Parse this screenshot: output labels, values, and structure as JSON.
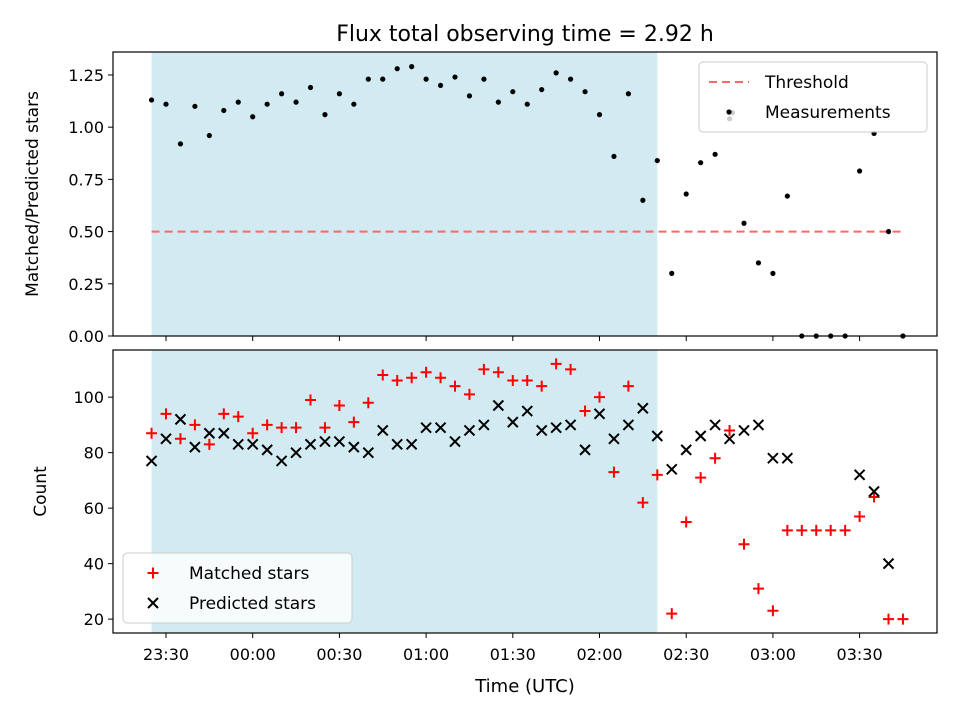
{
  "chart_data": {
    "title": "Flux total observing time = 2.92 h",
    "xlabel": "Time (UTC)",
    "x_tick_labels": [
      "23:30",
      "00:00",
      "00:30",
      "01:00",
      "01:30",
      "02:00",
      "02:30",
      "03:00",
      "03:30"
    ],
    "shaded_interval": {
      "start": "23:25",
      "end": "02:20",
      "color": "#add8e6"
    },
    "panels": [
      {
        "type": "scatter",
        "ylabel": "Matched/Predicted stars",
        "ylim": [
          0,
          1.36
        ],
        "yticks": [
          "0.00",
          "0.25",
          "0.50",
          "0.75",
          "1.00",
          "1.25"
        ],
        "legend_position": "top-right",
        "threshold": {
          "name": "Threshold",
          "value": 0.5,
          "x_start": "23:25",
          "x_end": "03:45",
          "color": "#ff6666"
        },
        "series": [
          {
            "name": "Measurements",
            "color": "#000000",
            "marker": "dot",
            "x": [
              "23:25",
              "23:30",
              "23:35",
              "23:40",
              "23:45",
              "23:50",
              "23:55",
              "00:00",
              "00:05",
              "00:10",
              "00:15",
              "00:20",
              "00:25",
              "00:30",
              "00:35",
              "00:40",
              "00:45",
              "00:50",
              "00:55",
              "01:00",
              "01:05",
              "01:10",
              "01:15",
              "01:20",
              "01:25",
              "01:30",
              "01:35",
              "01:40",
              "01:45",
              "01:50",
              "01:55",
              "02:00",
              "02:05",
              "02:10",
              "02:15",
              "02:20",
              "02:25",
              "02:30",
              "02:35",
              "02:40",
              "02:45",
              "02:46",
              "02:50",
              "02:55",
              "03:00",
              "03:05",
              "03:10",
              "03:15",
              "03:20",
              "03:25",
              "03:30",
              "03:35",
              "03:40",
              "03:45"
            ],
            "y": [
              1.13,
              1.11,
              0.92,
              1.1,
              0.96,
              1.08,
              1.12,
              1.05,
              1.11,
              1.16,
              1.12,
              1.19,
              1.06,
              1.16,
              1.11,
              1.23,
              1.23,
              1.28,
              1.29,
              1.23,
              1.2,
              1.24,
              1.15,
              1.23,
              1.12,
              1.17,
              1.11,
              1.18,
              1.26,
              1.23,
              1.17,
              1.06,
              0.86,
              1.16,
              0.65,
              0.84,
              0.3,
              0.68,
              0.83,
              0.87,
              1.04,
              1.07,
              0.54,
              0.35,
              0.3,
              0.67,
              0.0,
              0.0,
              0.0,
              0.0,
              0.79,
              0.97,
              0.5,
              0.0
            ]
          }
        ]
      },
      {
        "type": "scatter",
        "ylabel": "Count",
        "ylim": [
          15,
          117
        ],
        "yticks": [
          "20",
          "40",
          "60",
          "80",
          "100"
        ],
        "legend_position": "bottom-left",
        "series": [
          {
            "name": "Matched stars",
            "color": "#ff0000",
            "marker": "plus",
            "x": [
              "23:25",
              "23:30",
              "23:35",
              "23:40",
              "23:45",
              "23:50",
              "23:55",
              "00:00",
              "00:05",
              "00:10",
              "00:15",
              "00:20",
              "00:25",
              "00:30",
              "00:35",
              "00:40",
              "00:45",
              "00:50",
              "00:55",
              "01:00",
              "01:05",
              "01:10",
              "01:15",
              "01:20",
              "01:25",
              "01:30",
              "01:35",
              "01:40",
              "01:45",
              "01:50",
              "01:55",
              "02:00",
              "02:05",
              "02:10",
              "02:15",
              "02:20",
              "02:25",
              "02:30",
              "02:35",
              "02:40",
              "02:45",
              "02:50",
              "02:55",
              "03:00",
              "03:05",
              "03:10",
              "03:15",
              "03:20",
              "03:25",
              "03:30",
              "03:35",
              "03:40",
              "03:45"
            ],
            "y": [
              87,
              94,
              85,
              90,
              83,
              94,
              93,
              87,
              90,
              89,
              89,
              99,
              89,
              97,
              91,
              98,
              108,
              106,
              107,
              109,
              107,
              104,
              101,
              110,
              109,
              106,
              106,
              104,
              112,
              110,
              95,
              100,
              73,
              104,
              62,
              72,
              22,
              55,
              71,
              78,
              88,
              47,
              31,
              23,
              52,
              52,
              52,
              52,
              52,
              57,
              64,
              20,
              20
            ]
          },
          {
            "name": "Predicted stars",
            "color": "#000000",
            "marker": "x",
            "x": [
              "23:25",
              "23:30",
              "23:35",
              "23:40",
              "23:45",
              "23:50",
              "23:55",
              "00:00",
              "00:05",
              "00:10",
              "00:15",
              "00:20",
              "00:25",
              "00:30",
              "00:35",
              "00:40",
              "00:45",
              "00:50",
              "00:55",
              "01:00",
              "01:05",
              "01:10",
              "01:15",
              "01:20",
              "01:25",
              "01:30",
              "01:35",
              "01:40",
              "01:45",
              "01:50",
              "01:55",
              "02:00",
              "02:05",
              "02:10",
              "02:15",
              "02:20",
              "02:25",
              "02:30",
              "02:35",
              "02:40",
              "02:45",
              "02:50",
              "02:55",
              "03:00",
              "03:05",
              "03:30",
              "03:35",
              "03:40"
            ],
            "y": [
              77,
              85,
              92,
              82,
              87,
              87,
              83,
              83,
              81,
              77,
              80,
              83,
              84,
              84,
              82,
              80,
              88,
              83,
              83,
              89,
              89,
              84,
              88,
              90,
              97,
              91,
              95,
              88,
              89,
              90,
              81,
              94,
              85,
              90,
              96,
              86,
              74,
              81,
              86,
              90,
              85,
              88,
              90,
              78,
              78,
              72,
              66,
              40
            ]
          }
        ]
      }
    ]
  }
}
